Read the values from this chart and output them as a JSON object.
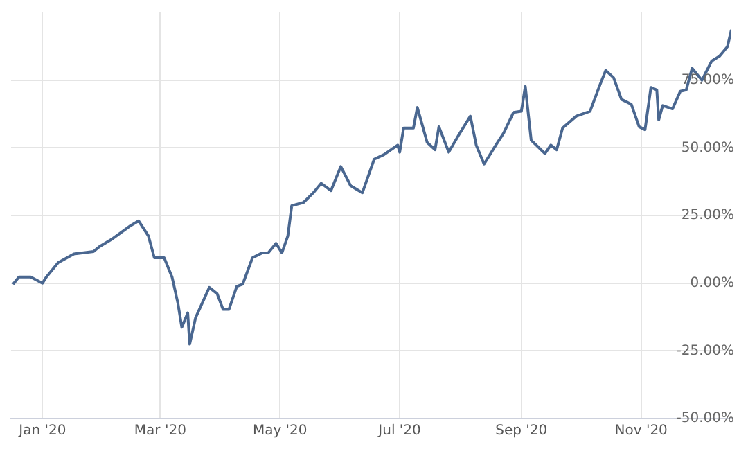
{
  "chart_data": {
    "type": "line",
    "x": [
      "2019-12-17",
      "2019-12-20",
      "2019-12-26",
      "2020-01-01",
      "2020-01-03",
      "2020-01-09",
      "2020-01-17",
      "2020-01-27",
      "2020-01-30",
      "2020-02-05",
      "2020-02-15",
      "2020-02-19",
      "2020-02-24",
      "2020-02-27",
      "2020-03-03",
      "2020-03-07",
      "2020-03-10",
      "2020-03-12",
      "2020-03-15",
      "2020-03-16",
      "2020-03-19",
      "2020-03-26",
      "2020-03-30",
      "2020-04-02",
      "2020-04-05",
      "2020-04-09",
      "2020-04-12",
      "2020-04-17",
      "2020-04-22",
      "2020-04-25",
      "2020-04-29",
      "2020-05-02",
      "2020-05-05",
      "2020-05-07",
      "2020-05-13",
      "2020-05-18",
      "2020-05-22",
      "2020-05-27",
      "2020-06-01",
      "2020-06-06",
      "2020-06-12",
      "2020-06-18",
      "2020-06-23",
      "2020-06-30",
      "2020-07-01",
      "2020-07-03",
      "2020-07-08",
      "2020-07-10",
      "2020-07-15",
      "2020-07-19",
      "2020-07-21",
      "2020-07-26",
      "2020-07-31",
      "2020-08-06",
      "2020-08-09",
      "2020-08-13",
      "2020-08-19",
      "2020-08-23",
      "2020-08-28",
      "2020-09-01",
      "2020-09-03",
      "2020-09-06",
      "2020-09-13",
      "2020-09-16",
      "2020-09-19",
      "2020-09-22",
      "2020-09-29",
      "2020-10-06",
      "2020-10-11",
      "2020-10-14",
      "2020-10-18",
      "2020-10-22",
      "2020-10-27",
      "2020-10-31",
      "2020-11-03",
      "2020-11-06",
      "2020-11-09",
      "2020-11-10",
      "2020-11-12",
      "2020-11-17",
      "2020-11-21",
      "2020-11-24",
      "2020-11-27",
      "2020-12-02",
      "2020-12-07",
      "2020-12-11",
      "2020-12-15",
      "2020-12-17"
    ],
    "series": [
      {
        "color": "#4a6790",
        "values": [
          -0.4,
          2.3,
          2.3,
          0,
          2.3,
          7.6,
          10.8,
          11.7,
          13.5,
          16.1,
          21.3,
          23,
          17.4,
          9.4,
          9.4,
          2.3,
          -7.4,
          -16.3,
          -11,
          -22.5,
          -12.8,
          -1.6,
          -3.9,
          -9.7,
          -9.7,
          -1.2,
          -0.4,
          9.4,
          11.2,
          11.2,
          14.7,
          11.2,
          17.4,
          28.6,
          29.8,
          33.4,
          36.9,
          34.2,
          43.1,
          36,
          33.4,
          45.8,
          47.5,
          51,
          48.4,
          57.3,
          57.3,
          64.9,
          52,
          49.3,
          57.8,
          48.4,
          54.6,
          61.7,
          51,
          44,
          51,
          55.5,
          63.1,
          63.5,
          72.7,
          52.8,
          47.9,
          51,
          49.3,
          57.3,
          61.7,
          63.5,
          73.2,
          78.6,
          75.9,
          67.9,
          66.1,
          57.8,
          56.7,
          72.3,
          71.4,
          60.3,
          65.6,
          64.4,
          70.9,
          71.4,
          79.4,
          75,
          82.1,
          83.9,
          87.4,
          93.6
        ]
      }
    ],
    "xlim": [
      "2019-12-16",
      "2020-12-17"
    ],
    "xticks": [
      {
        "value": "2020-01-01",
        "label": "Jan '20"
      },
      {
        "value": "2020-03-01",
        "label": "Mar '20"
      },
      {
        "value": "2020-05-01",
        "label": "May '20"
      },
      {
        "value": "2020-07-01",
        "label": "Jul '20"
      },
      {
        "value": "2020-09-01",
        "label": "Sep '20"
      },
      {
        "value": "2020-11-01",
        "label": "Nov '20"
      }
    ],
    "ylim": [
      -50,
      100
    ],
    "yticks": [
      {
        "value": -50,
        "label": "-50.00%"
      },
      {
        "value": -25,
        "label": "-25.00%"
      },
      {
        "value": 0,
        "label": "0.00%"
      },
      {
        "value": 25,
        "label": "25.00%"
      },
      {
        "value": 50,
        "label": "50.00%"
      },
      {
        "value": 75,
        "label": "75.00%"
      }
    ],
    "grid": true,
    "legend": false,
    "marker": "none",
    "line_style": "solid"
  }
}
